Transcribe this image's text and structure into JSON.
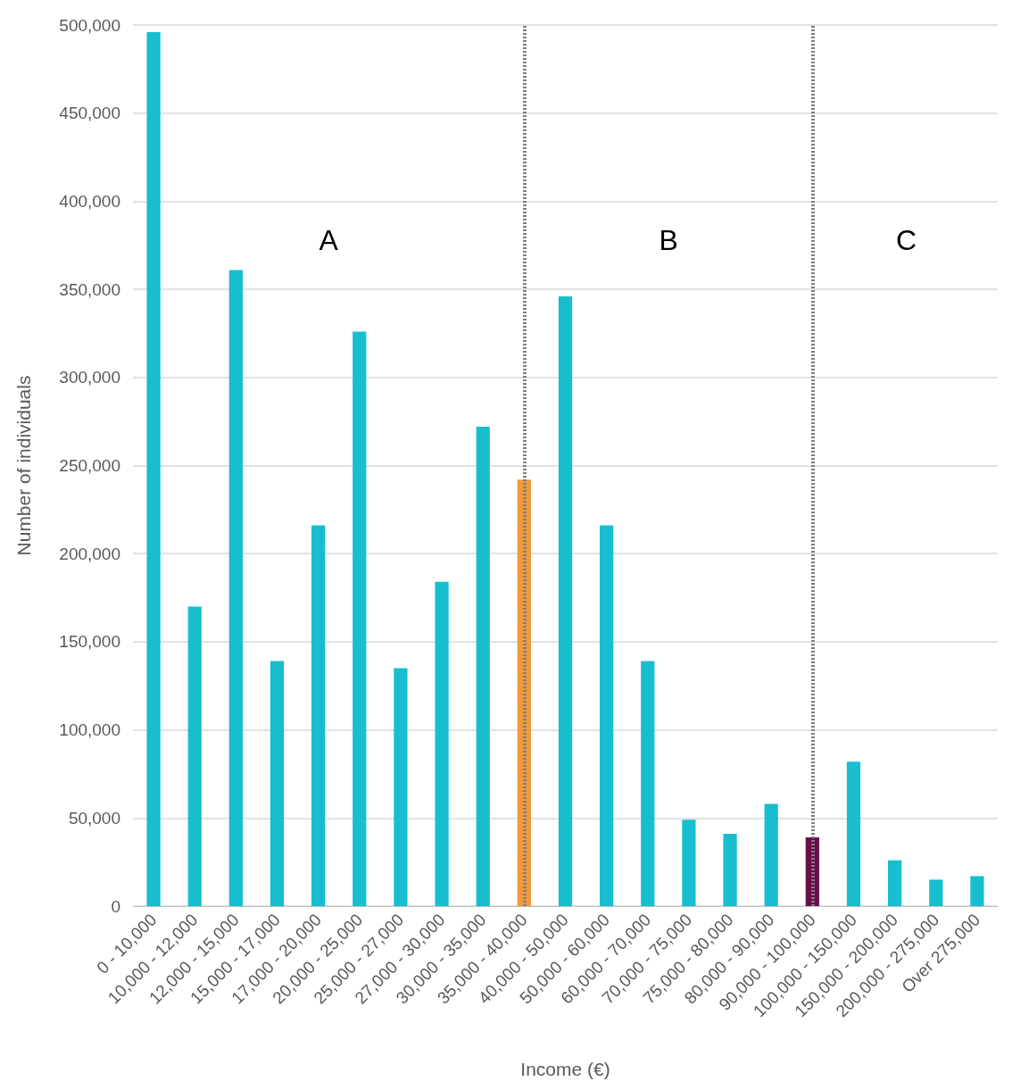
{
  "chart_data": {
    "type": "bar",
    "xlabel": "Income (€)",
    "ylabel": "Number of individuals",
    "categories": [
      "0 - 10,000",
      "10,000 - 12,000",
      "12,000 - 15,000",
      "15,000 - 17,000",
      "17,000 - 20,000",
      "20,000 - 25,000",
      "25,000 - 27,000",
      "27,000 - 30,000",
      "30,000 - 35,000",
      "35,000 - 40,000",
      "40,000 - 50,000",
      "50,000 - 60,000",
      "60,000 - 70,000",
      "70,000 - 75,000",
      "75,000 - 80,000",
      "80,000 - 90,000",
      "90,000 - 100,000",
      "100,000 - 150,000",
      "150,000 - 200,000",
      "200,000 - 275,000",
      "Over 275,000"
    ],
    "values": [
      496000,
      170000,
      361000,
      139000,
      216000,
      326000,
      135000,
      184000,
      272000,
      242000,
      346000,
      216000,
      139000,
      49000,
      41000,
      58000,
      39000,
      82000,
      26000,
      15000,
      17000
    ],
    "colors": [
      "#17bece",
      "#17bece",
      "#17bece",
      "#17bece",
      "#17bece",
      "#17bece",
      "#17bece",
      "#17bece",
      "#17bece",
      "#f09a3e",
      "#17bece",
      "#17bece",
      "#17bece",
      "#17bece",
      "#17bece",
      "#17bece",
      "#6b0d4b",
      "#17bece",
      "#17bece",
      "#17bece",
      "#17bece"
    ],
    "ylim": [
      0,
      500000
    ],
    "yticks": [
      0,
      {
        "value": 50000,
        "label": "50,000"
      },
      {
        "value": 100000,
        "label": "100,000"
      },
      {
        "value": 150000,
        "label": "150,000"
      },
      {
        "value": 200000,
        "label": "200,000"
      },
      {
        "value": 250000,
        "label": "250,000"
      },
      {
        "value": 300000,
        "label": "300,000"
      },
      {
        "value": 350000,
        "label": "350,000"
      },
      {
        "value": 400000,
        "label": "400,000"
      },
      {
        "value": 450000,
        "label": "450,000"
      },
      {
        "value": 500000,
        "label": "500,000"
      }
    ],
    "grid": "y",
    "ref_lines": [
      {
        "axis": "x",
        "value": "35,000 - 40,000",
        "color": "#7f7f7f",
        "line_style": "dotted"
      },
      {
        "axis": "x",
        "value": "90,000 - 100,000",
        "color": "#7f7f7f",
        "line_style": "dotted"
      }
    ],
    "annotations": [
      "A",
      "B",
      "C"
    ]
  }
}
